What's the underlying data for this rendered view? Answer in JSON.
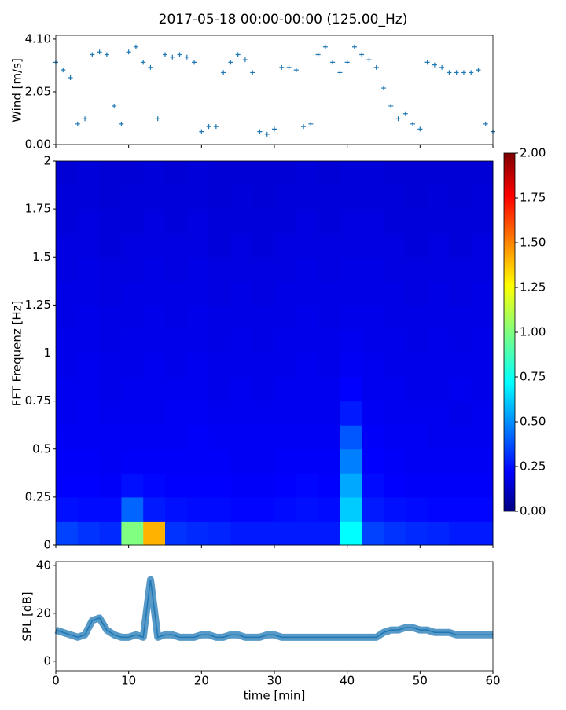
{
  "chart_data": [
    {
      "type": "scatter",
      "title": "2017-05-18 00:00-00:00 (125.00_Hz)",
      "ylabel": "Wind [m/s]",
      "color": "#1f77b4",
      "x": [
        0,
        1,
        2,
        3,
        4,
        5,
        6,
        7,
        8,
        9,
        10,
        11,
        12,
        13,
        14,
        15,
        16,
        17,
        18,
        19,
        20,
        21,
        22,
        23,
        24,
        25,
        26,
        27,
        28,
        29,
        30,
        31,
        32,
        33,
        34,
        35,
        36,
        37,
        38,
        39,
        40,
        41,
        42,
        43,
        44,
        45,
        46,
        47,
        48,
        49,
        50,
        51,
        52,
        53,
        54,
        55,
        56,
        57,
        58,
        59,
        60
      ],
      "values": [
        3.2,
        2.9,
        2.6,
        0.8,
        1.0,
        3.5,
        3.6,
        3.5,
        1.5,
        0.8,
        3.6,
        3.8,
        3.2,
        3.0,
        1.0,
        3.5,
        3.4,
        3.5,
        3.4,
        3.2,
        0.5,
        0.7,
        0.7,
        2.8,
        3.2,
        3.5,
        3.3,
        2.8,
        0.5,
        0.4,
        0.6,
        3.0,
        3.0,
        2.9,
        0.7,
        0.8,
        3.5,
        3.8,
        3.2,
        2.8,
        3.2,
        3.8,
        3.5,
        3.3,
        3.0,
        2.2,
        1.5,
        1.0,
        1.2,
        0.8,
        0.6,
        3.2,
        3.1,
        3.0,
        2.8,
        2.8,
        2.8,
        2.8,
        2.9,
        0.8,
        0.5
      ],
      "xlim": [
        0,
        60
      ],
      "ylim": [
        0,
        4.25
      ],
      "yticks": [
        {
          "value": 0,
          "label": "0.00"
        },
        {
          "value": 2.05,
          "label": "2.05"
        },
        {
          "value": 4.1,
          "label": "4.10"
        }
      ]
    },
    {
      "type": "heatmap",
      "ylabel": "FFT Frequenz [Hz]",
      "colormap": "jet",
      "xlim": [
        0,
        60
      ],
      "ylim": [
        0,
        2
      ],
      "yticks": [
        0,
        0.25,
        0.5,
        0.75,
        1,
        1.25,
        1.5,
        1.75,
        2
      ],
      "values": [
        [
          0.38,
          0.35,
          0.33,
          1.0,
          1.4,
          0.35,
          0.33,
          0.32,
          0.3,
          0.3,
          0.3,
          0.3,
          0.3,
          0.75,
          0.38,
          0.35,
          0.33,
          0.32,
          0.3,
          0.3
        ],
        [
          0.28,
          0.27,
          0.27,
          0.45,
          0.3,
          0.28,
          0.27,
          0.27,
          0.26,
          0.26,
          0.27,
          0.28,
          0.27,
          0.65,
          0.3,
          0.28,
          0.27,
          0.26,
          0.26,
          0.26
        ],
        [
          0.25,
          0.25,
          0.24,
          0.28,
          0.26,
          0.25,
          0.25,
          0.25,
          0.24,
          0.24,
          0.25,
          0.26,
          0.25,
          0.58,
          0.27,
          0.25,
          0.24,
          0.24,
          0.24,
          0.24
        ],
        [
          0.24,
          0.24,
          0.23,
          0.24,
          0.24,
          0.24,
          0.24,
          0.24,
          0.23,
          0.23,
          0.24,
          0.24,
          0.24,
          0.5,
          0.25,
          0.24,
          0.23,
          0.23,
          0.23,
          0.23
        ],
        [
          0.23,
          0.23,
          0.23,
          0.23,
          0.23,
          0.23,
          0.24,
          0.23,
          0.23,
          0.23,
          0.23,
          0.23,
          0.23,
          0.42,
          0.24,
          0.23,
          0.23,
          0.22,
          0.22,
          0.22
        ],
        [
          0.22,
          0.23,
          0.22,
          0.22,
          0.22,
          0.23,
          0.23,
          0.22,
          0.22,
          0.22,
          0.22,
          0.22,
          0.22,
          0.3,
          0.23,
          0.22,
          0.22,
          0.22,
          0.21,
          0.22
        ],
        [
          0.22,
          0.22,
          0.21,
          0.22,
          0.22,
          0.22,
          0.22,
          0.21,
          0.22,
          0.21,
          0.22,
          0.22,
          0.22,
          0.25,
          0.22,
          0.22,
          0.21,
          0.21,
          0.22,
          0.21
        ],
        [
          0.21,
          0.22,
          0.21,
          0.21,
          0.22,
          0.21,
          0.22,
          0.21,
          0.21,
          0.21,
          0.21,
          0.22,
          0.21,
          0.23,
          0.22,
          0.21,
          0.21,
          0.21,
          0.21,
          0.21
        ],
        [
          0.21,
          0.21,
          0.2,
          0.21,
          0.21,
          0.21,
          0.21,
          0.2,
          0.21,
          0.2,
          0.21,
          0.21,
          0.21,
          0.22,
          0.21,
          0.21,
          0.2,
          0.21,
          0.2,
          0.21
        ],
        [
          0.2,
          0.21,
          0.2,
          0.2,
          0.21,
          0.2,
          0.21,
          0.2,
          0.2,
          0.2,
          0.2,
          0.21,
          0.2,
          0.21,
          0.21,
          0.2,
          0.2,
          0.2,
          0.2,
          0.2
        ],
        [
          0.2,
          0.2,
          0.19,
          0.2,
          0.2,
          0.2,
          0.2,
          0.19,
          0.2,
          0.19,
          0.2,
          0.2,
          0.2,
          0.2,
          0.2,
          0.2,
          0.19,
          0.2,
          0.19,
          0.2
        ],
        [
          0.19,
          0.2,
          0.19,
          0.19,
          0.2,
          0.19,
          0.2,
          0.19,
          0.19,
          0.19,
          0.19,
          0.2,
          0.19,
          0.2,
          0.2,
          0.19,
          0.19,
          0.19,
          0.19,
          0.19
        ],
        [
          0.19,
          0.19,
          0.18,
          0.19,
          0.19,
          0.19,
          0.19,
          0.18,
          0.19,
          0.18,
          0.19,
          0.19,
          0.19,
          0.19,
          0.19,
          0.19,
          0.18,
          0.19,
          0.18,
          0.19
        ],
        [
          0.18,
          0.19,
          0.18,
          0.18,
          0.19,
          0.18,
          0.19,
          0.18,
          0.18,
          0.18,
          0.18,
          0.19,
          0.18,
          0.19,
          0.19,
          0.18,
          0.18,
          0.18,
          0.18,
          0.18
        ],
        [
          0.18,
          0.18,
          0.17,
          0.18,
          0.18,
          0.18,
          0.18,
          0.17,
          0.18,
          0.17,
          0.18,
          0.18,
          0.18,
          0.18,
          0.18,
          0.18,
          0.17,
          0.18,
          0.17,
          0.18
        ],
        [
          0.17,
          0.18,
          0.17,
          0.17,
          0.18,
          0.17,
          0.18,
          0.17,
          0.17,
          0.17,
          0.17,
          0.18,
          0.17,
          0.18,
          0.18,
          0.17,
          0.17,
          0.17,
          0.17,
          0.17
        ]
      ],
      "colorbar": {
        "clim": [
          0,
          2
        ],
        "ticks": [
          {
            "value": 0,
            "label": "0.00"
          },
          {
            "value": 0.25,
            "label": "0.25"
          },
          {
            "value": 0.5,
            "label": "0.50"
          },
          {
            "value": 0.75,
            "label": "0.75"
          },
          {
            "value": 1,
            "label": "1.00"
          },
          {
            "value": 1.25,
            "label": "1.25"
          },
          {
            "value": 1.5,
            "label": "1.50"
          },
          {
            "value": 1.75,
            "label": "1.75"
          },
          {
            "value": 2,
            "label": "2.00"
          }
        ]
      }
    },
    {
      "type": "line",
      "ylabel": "SPL [dB]",
      "xlabel": "time [min]",
      "color": "#1f77b4",
      "x": [
        0,
        1,
        2,
        3,
        4,
        5,
        6,
        7,
        8,
        9,
        10,
        11,
        12,
        13,
        14,
        15,
        16,
        17,
        18,
        19,
        20,
        21,
        22,
        23,
        24,
        25,
        26,
        27,
        28,
        29,
        30,
        31,
        32,
        33,
        34,
        35,
        36,
        37,
        38,
        39,
        40,
        41,
        42,
        43,
        44,
        45,
        46,
        47,
        48,
        49,
        50,
        51,
        52,
        53,
        54,
        55,
        56,
        57,
        58,
        59,
        60
      ],
      "values": [
        13,
        12,
        11,
        10,
        11,
        17,
        18,
        13,
        11,
        10,
        10,
        11,
        10,
        34,
        10,
        11,
        11,
        10,
        10,
        10,
        11,
        11,
        10,
        10,
        11,
        11,
        10,
        10,
        10,
        11,
        11,
        10,
        10,
        10,
        10,
        10,
        10,
        10,
        10,
        10,
        10,
        10,
        10,
        10,
        10,
        12,
        13,
        13,
        14,
        14,
        13,
        13,
        12,
        12,
        12,
        11,
        11,
        11,
        11,
        11,
        11
      ],
      "xlim": [
        0,
        60
      ],
      "ylim": [
        -4,
        41.6
      ],
      "xticks": [
        0,
        10,
        20,
        30,
        40,
        50,
        60
      ],
      "yticks": [
        0,
        20,
        40
      ]
    }
  ]
}
